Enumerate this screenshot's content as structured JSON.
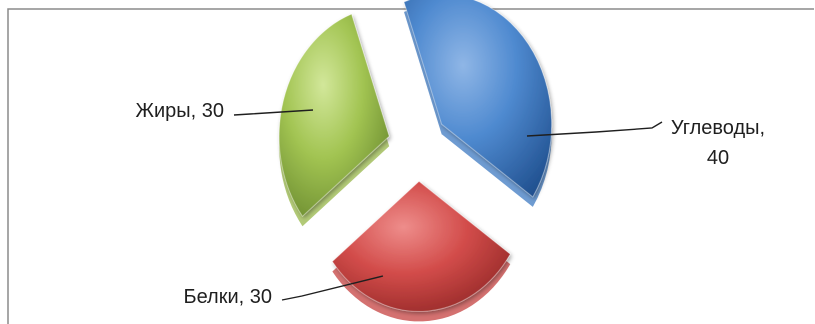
{
  "chart_data": {
    "type": "pie",
    "title": "",
    "exploded": true,
    "three_d": true,
    "legend": "none",
    "categories": [
      "Углеводы",
      "Белки",
      "Жиры"
    ],
    "values": [
      40,
      30,
      30
    ],
    "colors": [
      "#3d7ac2",
      "#c64140",
      "#98b84a"
    ],
    "data_labels": [
      {
        "lines": [
          "Углеводы,",
          "40"
        ]
      },
      {
        "lines": [
          "Белки, 30"
        ]
      },
      {
        "lines": [
          "Жиры, 30"
        ]
      }
    ]
  }
}
